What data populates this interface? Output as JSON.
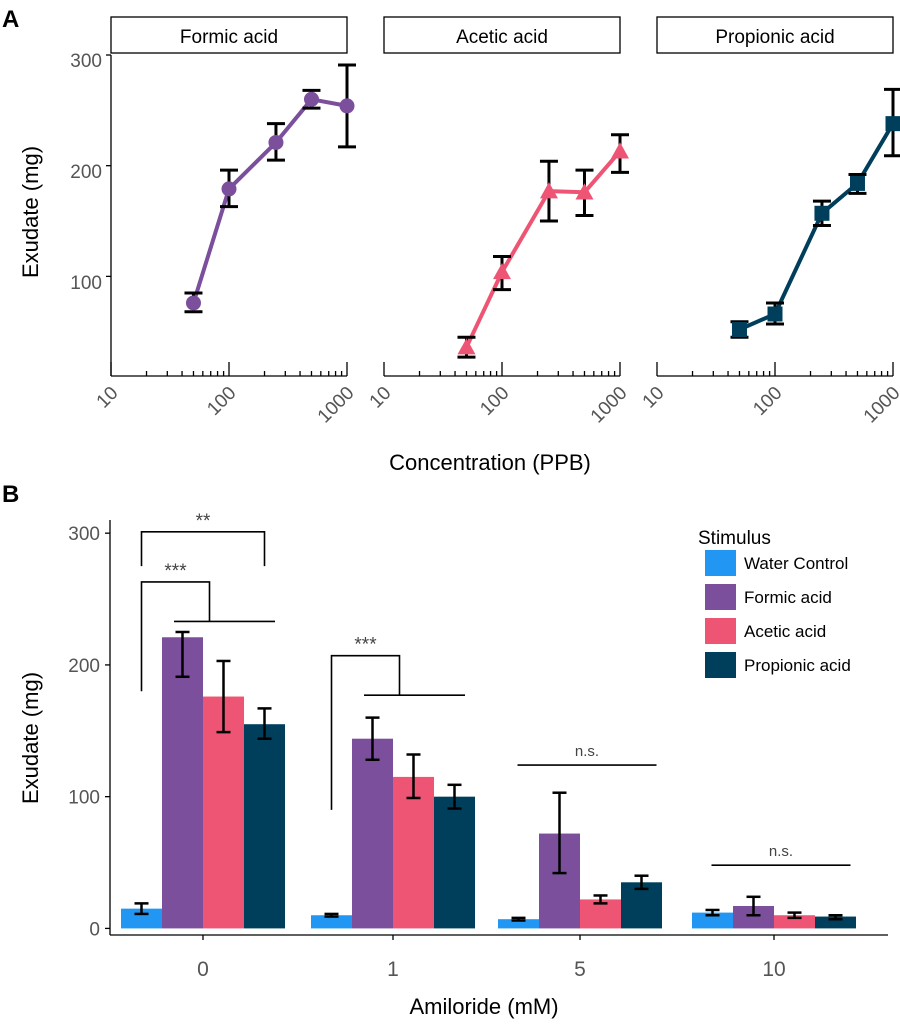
{
  "colors": {
    "water": "#2196F3",
    "formic": "#7B4F9B",
    "acetic": "#EE5574",
    "propionic": "#003F5C",
    "axis": "#000000",
    "tick_text": "#555555",
    "annotation": "#444444"
  },
  "chart_data": [
    {
      "panel_label": "A",
      "type": "line",
      "xscale": "log10",
      "xlabel": "Concentration (PPB)",
      "ylabel": "Exudate (mg)",
      "xlim": [
        10,
        1000
      ],
      "ylim": [
        10,
        300
      ],
      "yticks": [
        100,
        200,
        300
      ],
      "xticks": [
        10,
        100,
        1000
      ],
      "xtick_labels": [
        "10",
        "100",
        "1000"
      ],
      "ytick_labels": [
        "100",
        "200",
        "300"
      ],
      "facets": [
        {
          "title": "Formic acid",
          "color_key": "formic",
          "marker": "circle",
          "x": [
            50,
            100,
            250,
            500,
            1000
          ],
          "y": [
            76,
            179,
            221,
            260,
            254
          ],
          "err_low": [
            68,
            163,
            205,
            252,
            217
          ],
          "err_high": [
            85,
            196,
            238,
            268,
            291
          ]
        },
        {
          "title": "Acetic acid",
          "color_key": "acetic",
          "marker": "triangle",
          "x": [
            50,
            100,
            250,
            500,
            1000
          ],
          "y": [
            36,
            104,
            177,
            176,
            213
          ],
          "err_low": [
            27,
            88,
            150,
            155,
            194
          ],
          "err_high": [
            45,
            118,
            204,
            196,
            228
          ]
        },
        {
          "title": "Propionic acid",
          "color_key": "propionic",
          "marker": "square",
          "x": [
            50,
            100,
            250,
            500,
            1000
          ],
          "y": [
            52,
            66,
            157,
            184,
            238
          ],
          "err_low": [
            45,
            57,
            146,
            175,
            209
          ],
          "err_high": [
            59,
            76,
            168,
            192,
            269
          ]
        }
      ]
    },
    {
      "panel_label": "B",
      "type": "bar",
      "xlabel": "Amiloride (mM)",
      "ylabel": "Exudate (mg)",
      "ylim": [
        -5,
        310
      ],
      "yticks": [
        0,
        100,
        200,
        300
      ],
      "ytick_labels": [
        "0",
        "100",
        "200",
        "300"
      ],
      "categories": [
        "0",
        "1",
        "5",
        "10"
      ],
      "legend_title": "Stimulus",
      "legend_position": "top-right",
      "series": [
        {
          "name": "Water Control",
          "color_key": "water",
          "values": [
            15,
            10,
            7,
            12
          ],
          "err_low": [
            11,
            9,
            6,
            10
          ],
          "err_high": [
            19,
            11,
            8,
            14
          ]
        },
        {
          "name": "Formic acid",
          "color_key": "formic",
          "values": [
            221,
            144,
            72,
            17
          ],
          "err_low": [
            191,
            128,
            42,
            10
          ],
          "err_high": [
            225,
            160,
            103,
            24
          ]
        },
        {
          "name": "Acetic acid",
          "color_key": "acetic",
          "values": [
            176,
            115,
            22,
            10
          ],
          "err_low": [
            149,
            99,
            19,
            8
          ],
          "err_high": [
            203,
            132,
            25,
            12
          ]
        },
        {
          "name": "Propionic acid",
          "color_key": "propionic",
          "values": [
            155,
            100,
            35,
            9
          ],
          "err_low": [
            144,
            91,
            30,
            7
          ],
          "err_high": [
            167,
            109,
            40,
            10
          ]
        }
      ],
      "annotations": [
        {
          "label": "**",
          "kind": "bracket",
          "cat": 0,
          "from": 0,
          "to": 3,
          "y_bottom": 275,
          "y_top": 301
        },
        {
          "label": "***",
          "kind": "group-bracket",
          "cat": 0,
          "from": 0,
          "group_from": 1,
          "group_to": 3,
          "group_y": 233,
          "y_bottom": 180,
          "y_top": 263
        },
        {
          "label": "***",
          "kind": "group-bracket",
          "cat": 1,
          "from": 0,
          "group_from": 1,
          "group_to": 3,
          "group_y": 177,
          "y_bottom": 90,
          "y_top": 207
        },
        {
          "label": "n.s.",
          "kind": "line",
          "cat": 2,
          "from": 0,
          "to": 3,
          "y": 124
        },
        {
          "label": "n.s.",
          "kind": "line",
          "cat": 3,
          "from": 0,
          "to": 3,
          "y": 48
        }
      ]
    }
  ]
}
